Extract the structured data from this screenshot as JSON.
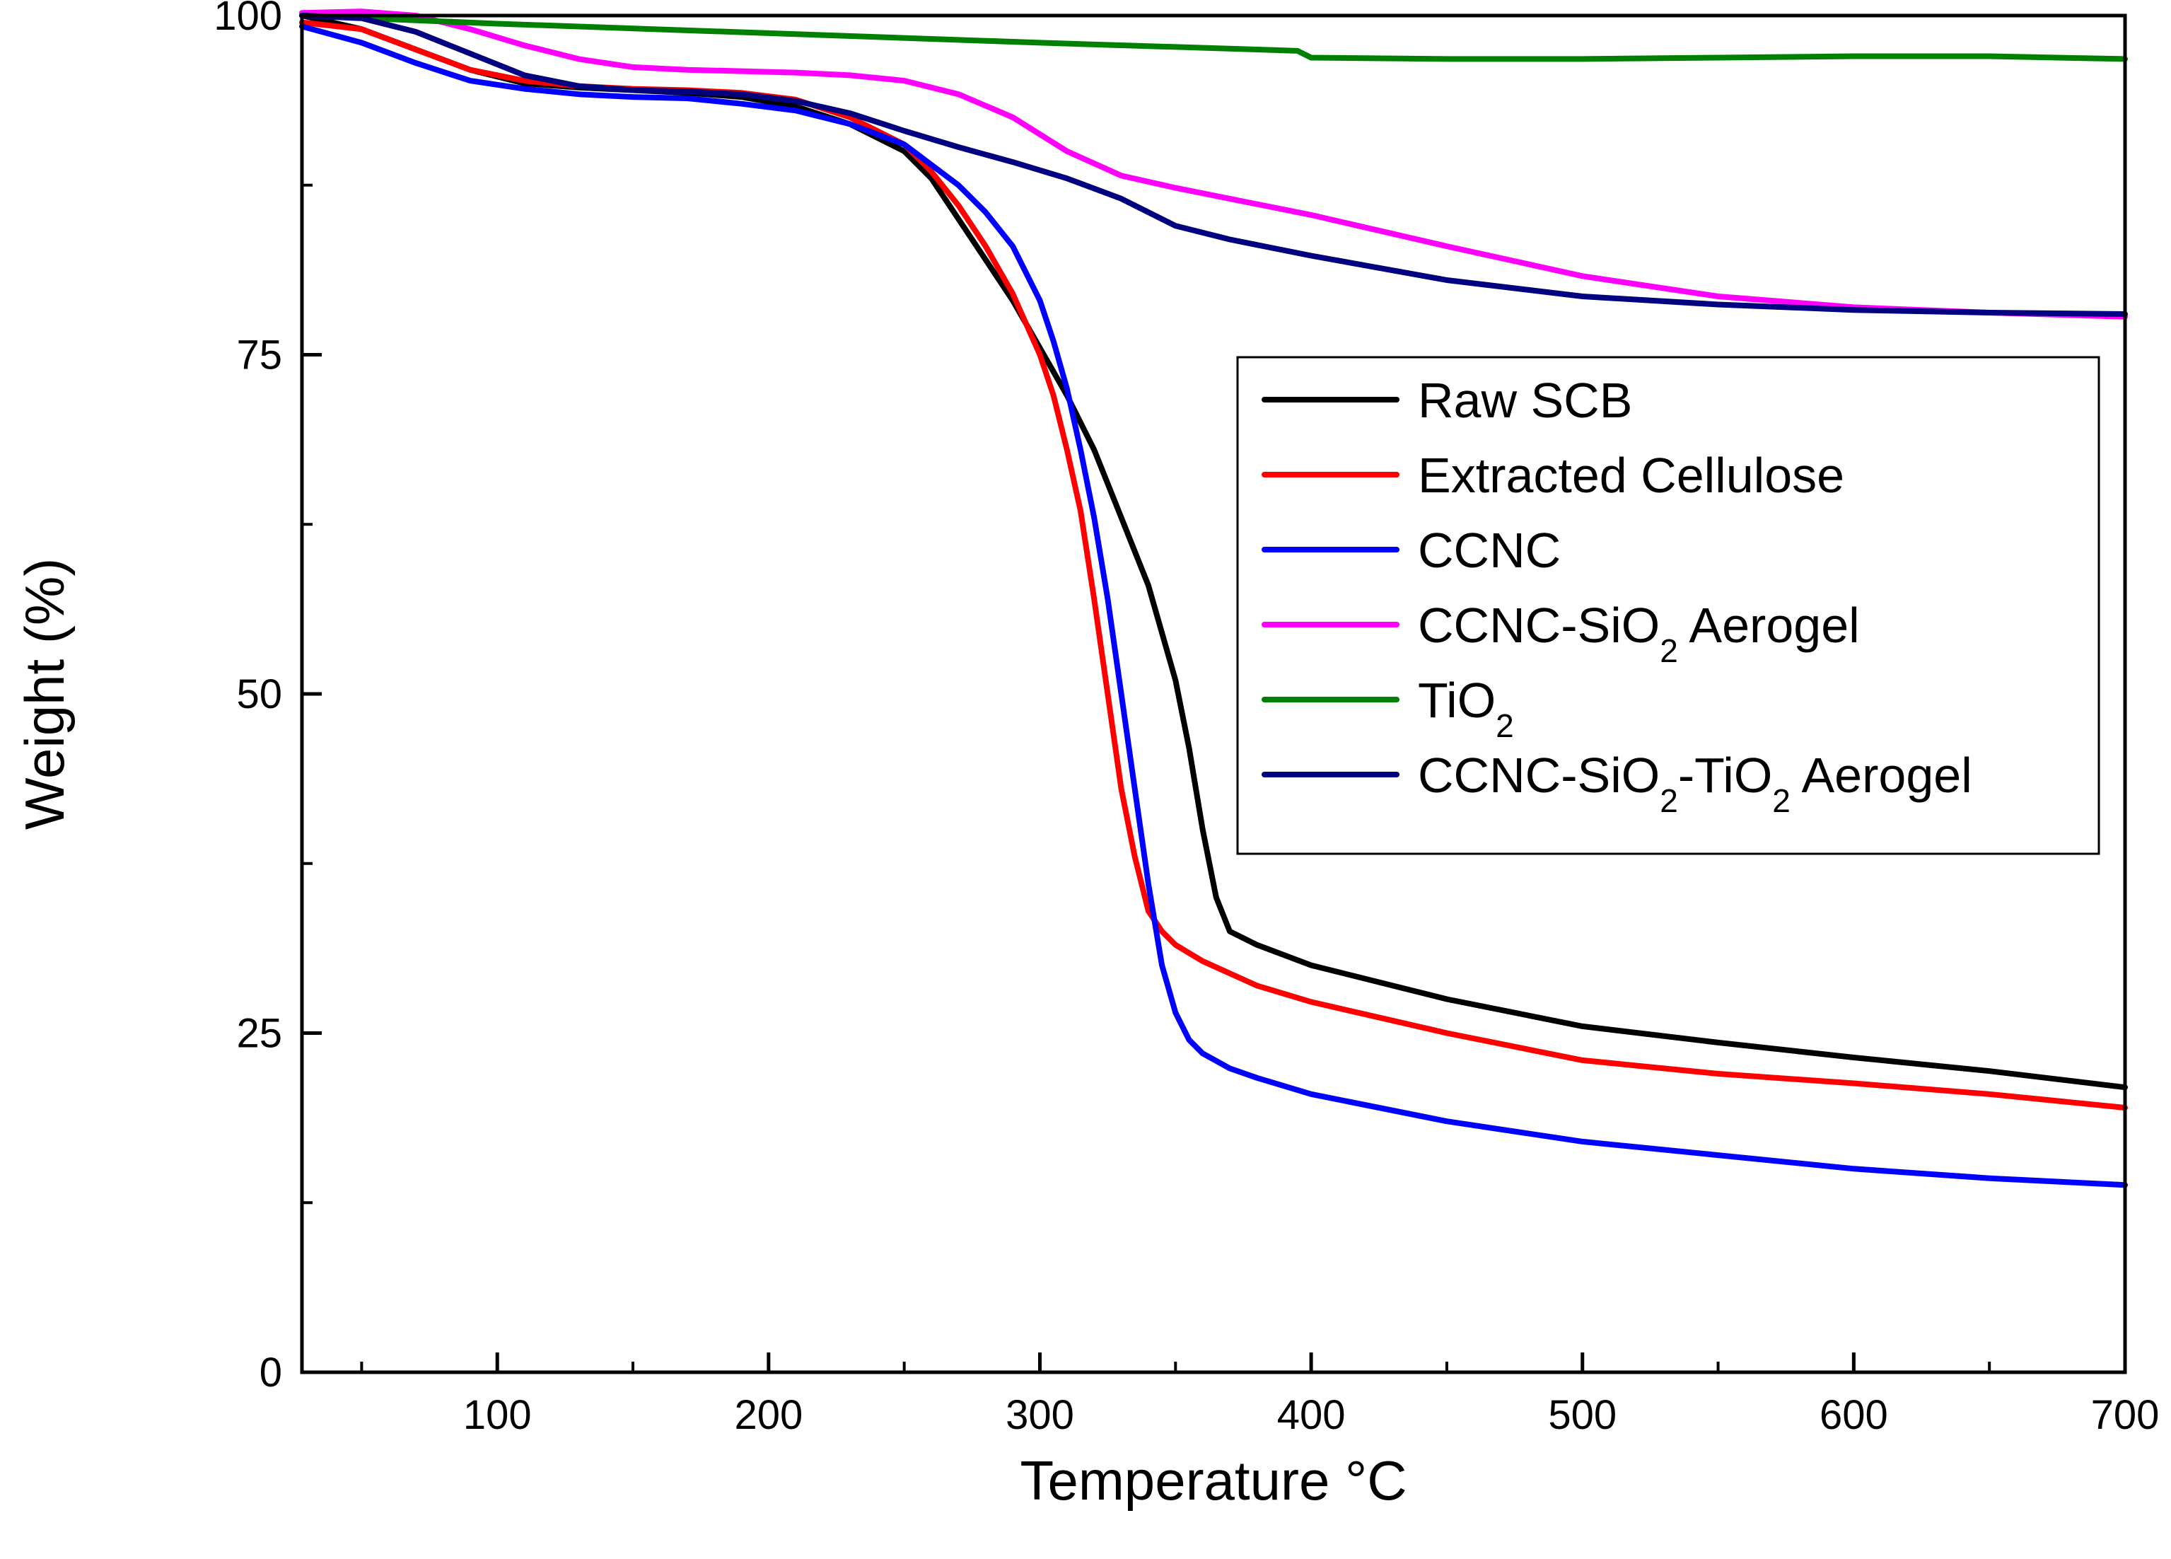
{
  "chart_data": {
    "type": "line",
    "title": "",
    "xlabel": "Temperature °C",
    "ylabel": "Weight (%)",
    "xlim": [
      28,
      700
    ],
    "ylim": [
      0,
      100
    ],
    "x_ticks": [
      100,
      200,
      300,
      400,
      500,
      600,
      700
    ],
    "x_tick_labels": [
      "100",
      "200",
      "300",
      "400",
      "500",
      "600",
      "700"
    ],
    "y_ticks": [
      0,
      25,
      50,
      75,
      100
    ],
    "y_tick_labels": [
      "0",
      "25",
      "50",
      "75",
      "100"
    ],
    "grid": false,
    "legend_position": "center-right",
    "series": [
      {
        "name": "Raw SCB",
        "legend_parts": [
          {
            "t": "Raw SCB",
            "sub": false
          }
        ],
        "color": "#000000",
        "x": [
          28,
          50,
          70,
          90,
          110,
          130,
          150,
          170,
          190,
          210,
          230,
          250,
          260,
          270,
          280,
          290,
          300,
          310,
          320,
          330,
          340,
          350,
          355,
          360,
          365,
          370,
          380,
          400,
          450,
          500,
          550,
          600,
          650,
          700
        ],
        "y": [
          100,
          99,
          97.5,
          96,
          95,
          94.7,
          94.5,
          94.3,
          94,
          93.3,
          92,
          90,
          88,
          85,
          82,
          79,
          75.5,
          72,
          68,
          63,
          58,
          51,
          46,
          40,
          35,
          32.5,
          31.5,
          30,
          27.5,
          25.5,
          24.3,
          23.2,
          22.2,
          21
        ]
      },
      {
        "name": "Extracted Cellulose",
        "legend_parts": [
          {
            "t": "Extracted Cellulose",
            "sub": false
          }
        ],
        "color": "#ff0000",
        "x": [
          28,
          50,
          70,
          90,
          110,
          130,
          150,
          170,
          190,
          210,
          230,
          250,
          260,
          270,
          280,
          290,
          300,
          305,
          310,
          315,
          320,
          325,
          330,
          335,
          340,
          345,
          350,
          360,
          380,
          400,
          450,
          500,
          550,
          600,
          650,
          700
        ],
        "y": [
          99.5,
          99,
          97.5,
          96,
          95.2,
          94.8,
          94.6,
          94.5,
          94.3,
          93.8,
          92.5,
          90.5,
          88.5,
          86,
          83,
          79.5,
          75,
          72,
          68,
          63.5,
          57,
          50,
          43,
          38,
          34,
          32.5,
          31.5,
          30.3,
          28.5,
          27.3,
          25,
          23,
          22,
          21.3,
          20.5,
          19.5
        ]
      },
      {
        "name": "CCNC",
        "legend_parts": [
          {
            "t": "CCNC",
            "sub": false
          }
        ],
        "color": "#0000ff",
        "x": [
          28,
          50,
          70,
          90,
          110,
          130,
          150,
          170,
          190,
          210,
          230,
          250,
          260,
          270,
          280,
          290,
          300,
          305,
          310,
          315,
          320,
          325,
          330,
          335,
          340,
          345,
          350,
          355,
          360,
          370,
          380,
          400,
          450,
          500,
          550,
          600,
          650,
          700
        ],
        "y": [
          99.2,
          98,
          96.5,
          95.2,
          94.6,
          94.2,
          94,
          93.9,
          93.5,
          93,
          92,
          90.5,
          89,
          87.5,
          85.5,
          83,
          79,
          76,
          72.5,
          68,
          63,
          57,
          50,
          43,
          36,
          30,
          26.5,
          24.5,
          23.5,
          22.4,
          21.7,
          20.5,
          18.5,
          17,
          16,
          15,
          14.3,
          13.8
        ]
      },
      {
        "name": "CCNC-SiO2 Aerogel",
        "legend_parts": [
          {
            "t": "CCNC-SiO",
            "sub": false
          },
          {
            "t": "2",
            "sub": true
          },
          {
            "t": " Aerogel",
            "sub": false
          }
        ],
        "color": "#ff00ff",
        "x": [
          28,
          50,
          70,
          90,
          110,
          130,
          150,
          170,
          190,
          210,
          230,
          250,
          270,
          290,
          310,
          330,
          350,
          370,
          400,
          450,
          500,
          550,
          600,
          650,
          700
        ],
        "y": [
          100.2,
          100.3,
          100,
          99,
          97.8,
          96.8,
          96.2,
          96,
          95.9,
          95.8,
          95.6,
          95.2,
          94.2,
          92.5,
          90,
          88.2,
          87.3,
          86.5,
          85.3,
          83,
          80.8,
          79.3,
          78.5,
          78.1,
          77.8
        ]
      },
      {
        "name": "TiO2",
        "legend_parts": [
          {
            "t": "TiO",
            "sub": false
          },
          {
            "t": "2",
            "sub": true
          }
        ],
        "color": "#008000",
        "x": [
          28,
          100,
          200,
          300,
          380,
          395,
          400,
          450,
          500,
          550,
          600,
          650,
          700
        ],
        "y": [
          100,
          99.4,
          98.7,
          98,
          97.5,
          97.4,
          96.9,
          96.8,
          96.8,
          96.9,
          97,
          97,
          96.8
        ]
      },
      {
        "name": "CCNC-SiO2-TiO2 Aerogel",
        "legend_parts": [
          {
            "t": "CCNC-SiO",
            "sub": false
          },
          {
            "t": "2",
            "sub": true
          },
          {
            "t": "-TiO",
            "sub": false
          },
          {
            "t": "2",
            "sub": true
          },
          {
            "t": " Aerogel",
            "sub": false
          }
        ],
        "color": "#000080",
        "x": [
          28,
          50,
          70,
          90,
          110,
          130,
          150,
          170,
          190,
          210,
          230,
          250,
          270,
          290,
          310,
          330,
          350,
          370,
          400,
          450,
          500,
          550,
          600,
          650,
          700
        ],
        "y": [
          100,
          99.8,
          98.8,
          97.2,
          95.6,
          94.8,
          94.5,
          94.4,
          94.2,
          93.7,
          92.8,
          91.5,
          90.3,
          89.2,
          88,
          86.5,
          84.5,
          83.5,
          82.3,
          80.5,
          79.3,
          78.7,
          78.3,
          78.1,
          78
        ]
      }
    ]
  }
}
